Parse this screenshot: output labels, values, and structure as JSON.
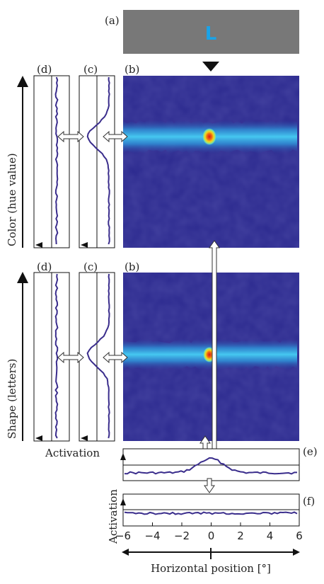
{
  "labels": {
    "a": "(a)",
    "b": "(b)",
    "c": "(c)",
    "d": "(d)",
    "e": "(e)",
    "f": "(f)"
  },
  "stimulus": {
    "letter": "L",
    "letter_color": "#1aa3e8",
    "background": "#787878"
  },
  "axes": {
    "color_axis": "Color (hue value)",
    "shape_axis": "Shape (letters)",
    "activation_left": "Activation",
    "activation_vertical": "Activation",
    "horizontal": "Horizontal position [°]"
  },
  "x_ticks": [
    "−6",
    "−4",
    "−2",
    "0",
    "2",
    "4",
    "6"
  ],
  "x_tick_values": [
    -6,
    -4,
    -2,
    0,
    2,
    4,
    6
  ],
  "colors": {
    "field_bg": "#2c2a8f",
    "ridge": "#3fc2ee",
    "peak_core": "#e8201a",
    "peak_mid": "#f5d21a",
    "curve": "#3a2d8c"
  }
}
